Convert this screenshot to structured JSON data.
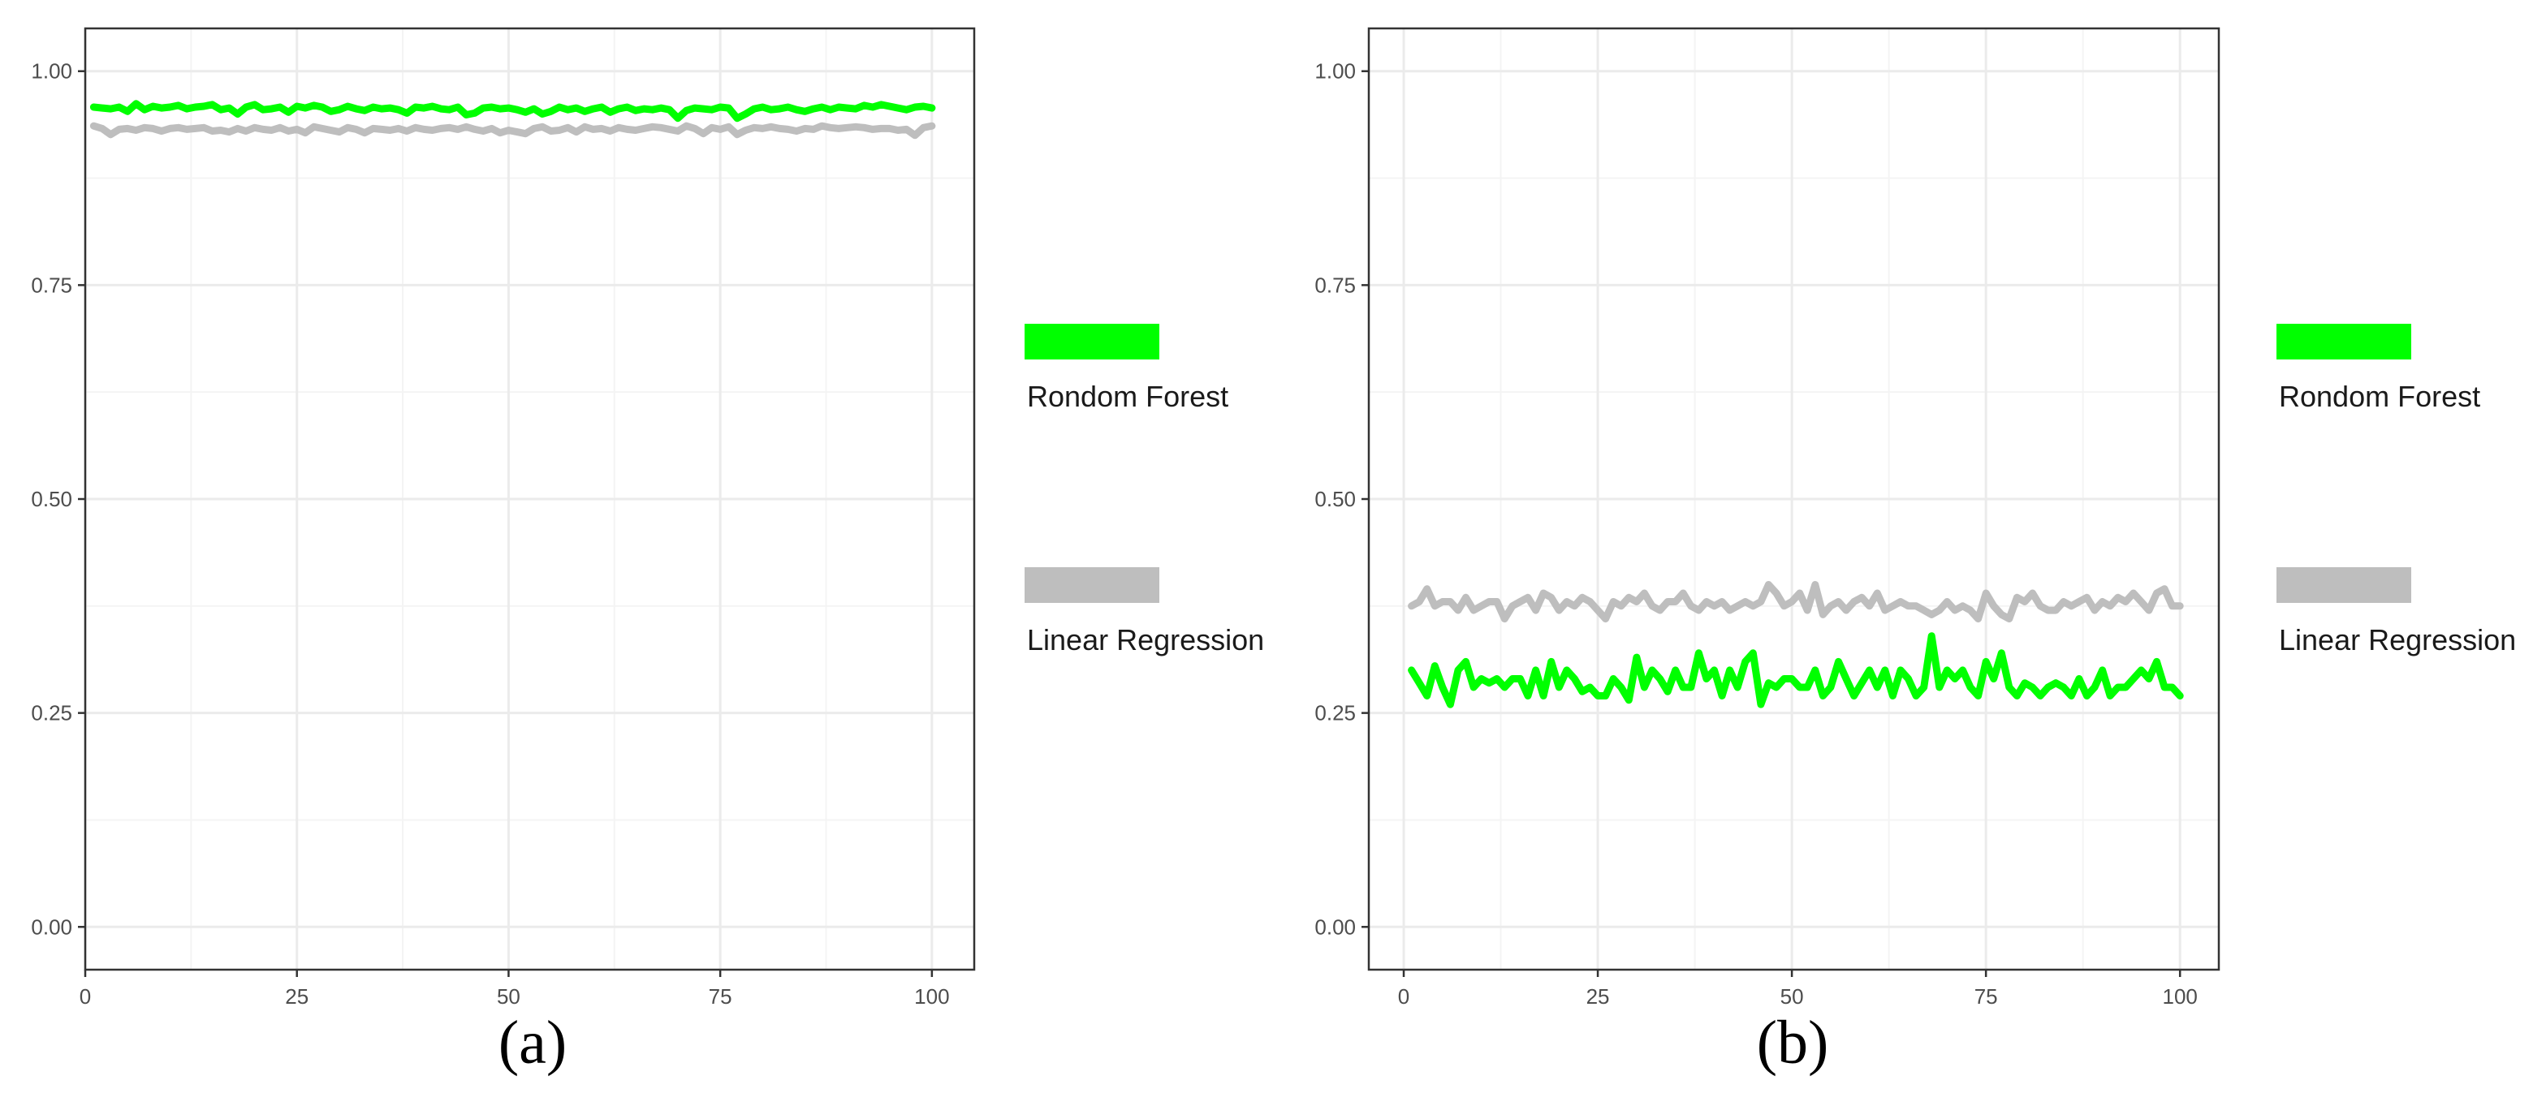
{
  "colors": {
    "random_forest": "#00ff00",
    "linear_regression": "#bebebe",
    "grid_major": "#ebebeb",
    "grid_minor": "#f4f4f4",
    "panel_border": "#333333",
    "background": "#ffffff"
  },
  "chart_data": [
    {
      "type": "line",
      "caption": "(a)",
      "title": "",
      "xlabel": "",
      "ylabel": "",
      "xlim": [
        0,
        105
      ],
      "ylim": [
        -0.05,
        1.05
      ],
      "x_ticks": [
        0,
        25,
        50,
        75,
        100
      ],
      "x_tick_labels": [
        "0",
        "25",
        "50",
        "75",
        "100"
      ],
      "y_ticks": [
        0,
        0.25,
        0.5,
        0.75,
        1
      ],
      "y_tick_labels": [
        "0.00",
        "0.25",
        "0.50",
        "0.75",
        "1.00"
      ],
      "grid": true,
      "legend_placement": "right",
      "legend": [
        "Rondom Forest",
        "Linear Regression"
      ],
      "x": [
        1,
        2,
        3,
        4,
        5,
        6,
        7,
        8,
        9,
        10,
        11,
        12,
        13,
        14,
        15,
        16,
        17,
        18,
        19,
        20,
        21,
        22,
        23,
        24,
        25,
        26,
        27,
        28,
        29,
        30,
        31,
        32,
        33,
        34,
        35,
        36,
        37,
        38,
        39,
        40,
        41,
        42,
        43,
        44,
        45,
        46,
        47,
        48,
        49,
        50,
        51,
        52,
        53,
        54,
        55,
        56,
        57,
        58,
        59,
        60,
        61,
        62,
        63,
        64,
        65,
        66,
        67,
        68,
        69,
        70,
        71,
        72,
        73,
        74,
        75,
        76,
        77,
        78,
        79,
        80,
        81,
        82,
        83,
        84,
        85,
        86,
        87,
        88,
        89,
        90,
        91,
        92,
        93,
        94,
        95,
        96,
        97,
        98,
        99,
        100
      ],
      "series": [
        {
          "name": "Rondom Forest",
          "values": [
            0.958,
            0.957,
            0.956,
            0.958,
            0.953,
            0.962,
            0.955,
            0.959,
            0.957,
            0.958,
            0.96,
            0.956,
            0.958,
            0.959,
            0.961,
            0.955,
            0.957,
            0.95,
            0.958,
            0.961,
            0.955,
            0.956,
            0.958,
            0.952,
            0.959,
            0.957,
            0.96,
            0.958,
            0.953,
            0.955,
            0.959,
            0.956,
            0.954,
            0.958,
            0.956,
            0.957,
            0.955,
            0.951,
            0.958,
            0.957,
            0.959,
            0.956,
            0.955,
            0.958,
            0.949,
            0.951,
            0.957,
            0.958,
            0.956,
            0.957,
            0.955,
            0.952,
            0.956,
            0.95,
            0.953,
            0.958,
            0.955,
            0.957,
            0.953,
            0.956,
            0.958,
            0.952,
            0.956,
            0.958,
            0.954,
            0.956,
            0.955,
            0.957,
            0.955,
            0.945,
            0.954,
            0.957,
            0.956,
            0.955,
            0.958,
            0.957,
            0.945,
            0.95,
            0.956,
            0.958,
            0.955,
            0.956,
            0.958,
            0.955,
            0.953,
            0.956,
            0.958,
            0.955,
            0.958,
            0.957,
            0.956,
            0.96,
            0.958,
            0.961,
            0.959,
            0.957,
            0.955,
            0.958,
            0.959,
            0.957
          ]
        },
        {
          "name": "Linear Regression",
          "values": [
            0.936,
            0.933,
            0.926,
            0.932,
            0.933,
            0.931,
            0.934,
            0.933,
            0.93,
            0.933,
            0.934,
            0.932,
            0.933,
            0.934,
            0.93,
            0.931,
            0.929,
            0.933,
            0.93,
            0.934,
            0.932,
            0.931,
            0.934,
            0.93,
            0.932,
            0.928,
            0.935,
            0.933,
            0.931,
            0.929,
            0.934,
            0.932,
            0.928,
            0.933,
            0.932,
            0.931,
            0.933,
            0.93,
            0.934,
            0.932,
            0.931,
            0.933,
            0.934,
            0.932,
            0.935,
            0.932,
            0.93,
            0.933,
            0.928,
            0.931,
            0.929,
            0.927,
            0.933,
            0.935,
            0.93,
            0.931,
            0.934,
            0.929,
            0.935,
            0.932,
            0.933,
            0.93,
            0.934,
            0.932,
            0.931,
            0.933,
            0.935,
            0.934,
            0.932,
            0.93,
            0.936,
            0.933,
            0.927,
            0.934,
            0.932,
            0.935,
            0.926,
            0.931,
            0.934,
            0.933,
            0.935,
            0.933,
            0.932,
            0.93,
            0.933,
            0.932,
            0.936,
            0.934,
            0.933,
            0.934,
            0.935,
            0.934,
            0.932,
            0.933,
            0.933,
            0.931,
            0.932,
            0.925,
            0.934,
            0.936
          ]
        }
      ]
    },
    {
      "type": "line",
      "caption": "(b)",
      "title": "",
      "xlabel": "",
      "ylabel": "",
      "xlim": [
        -4.5,
        105
      ],
      "ylim": [
        -0.05,
        1.05
      ],
      "x_ticks": [
        0,
        25,
        50,
        75,
        100
      ],
      "x_tick_labels": [
        "0",
        "25",
        "50",
        "75",
        "100"
      ],
      "y_ticks": [
        0,
        0.25,
        0.5,
        0.75,
        1
      ],
      "y_tick_labels": [
        "0.00",
        "0.25",
        "0.50",
        "0.75",
        "1.00"
      ],
      "grid": true,
      "legend_placement": "right",
      "legend": [
        "Rondom Forest",
        "Linear Regression"
      ],
      "x": [
        1,
        2,
        3,
        4,
        5,
        6,
        7,
        8,
        9,
        10,
        11,
        12,
        13,
        14,
        15,
        16,
        17,
        18,
        19,
        20,
        21,
        22,
        23,
        24,
        25,
        26,
        27,
        28,
        29,
        30,
        31,
        32,
        33,
        34,
        35,
        36,
        37,
        38,
        39,
        40,
        41,
        42,
        43,
        44,
        45,
        46,
        47,
        48,
        49,
        50,
        51,
        52,
        53,
        54,
        55,
        56,
        57,
        58,
        59,
        60,
        61,
        62,
        63,
        64,
        65,
        66,
        67,
        68,
        69,
        70,
        71,
        72,
        73,
        74,
        75,
        76,
        77,
        78,
        79,
        80,
        81,
        82,
        83,
        84,
        85,
        86,
        87,
        88,
        89,
        90,
        91,
        92,
        93,
        94,
        95,
        96,
        97,
        98,
        99,
        100
      ],
      "series": [
        {
          "name": "Rondom Forest",
          "values": [
            0.3,
            0.285,
            0.27,
            0.305,
            0.28,
            0.26,
            0.3,
            0.31,
            0.28,
            0.29,
            0.285,
            0.29,
            0.28,
            0.29,
            0.29,
            0.27,
            0.3,
            0.27,
            0.31,
            0.28,
            0.3,
            0.29,
            0.275,
            0.28,
            0.27,
            0.27,
            0.29,
            0.28,
            0.265,
            0.315,
            0.28,
            0.3,
            0.29,
            0.275,
            0.3,
            0.28,
            0.28,
            0.32,
            0.29,
            0.3,
            0.27,
            0.3,
            0.28,
            0.31,
            0.32,
            0.26,
            0.285,
            0.28,
            0.29,
            0.29,
            0.28,
            0.28,
            0.3,
            0.27,
            0.28,
            0.31,
            0.29,
            0.27,
            0.285,
            0.3,
            0.28,
            0.3,
            0.27,
            0.3,
            0.29,
            0.27,
            0.28,
            0.34,
            0.28,
            0.3,
            0.29,
            0.3,
            0.28,
            0.27,
            0.31,
            0.29,
            0.32,
            0.28,
            0.27,
            0.285,
            0.28,
            0.27,
            0.28,
            0.285,
            0.28,
            0.27,
            0.29,
            0.27,
            0.28,
            0.3,
            0.27,
            0.28,
            0.28,
            0.29,
            0.3,
            0.29,
            0.31,
            0.28,
            0.28,
            0.27
          ]
        },
        {
          "name": "Linear Regression",
          "values": [
            0.375,
            0.38,
            0.395,
            0.375,
            0.38,
            0.38,
            0.37,
            0.385,
            0.37,
            0.375,
            0.38,
            0.38,
            0.36,
            0.375,
            0.38,
            0.385,
            0.37,
            0.39,
            0.385,
            0.37,
            0.38,
            0.375,
            0.385,
            0.38,
            0.37,
            0.36,
            0.38,
            0.375,
            0.385,
            0.38,
            0.39,
            0.375,
            0.37,
            0.38,
            0.38,
            0.39,
            0.375,
            0.37,
            0.38,
            0.375,
            0.38,
            0.37,
            0.375,
            0.38,
            0.375,
            0.38,
            0.4,
            0.39,
            0.375,
            0.38,
            0.39,
            0.37,
            0.4,
            0.365,
            0.375,
            0.38,
            0.37,
            0.38,
            0.385,
            0.375,
            0.39,
            0.37,
            0.375,
            0.38,
            0.375,
            0.375,
            0.37,
            0.365,
            0.37,
            0.38,
            0.37,
            0.375,
            0.37,
            0.36,
            0.39,
            0.375,
            0.365,
            0.36,
            0.385,
            0.38,
            0.39,
            0.375,
            0.37,
            0.37,
            0.38,
            0.375,
            0.38,
            0.385,
            0.37,
            0.38,
            0.375,
            0.385,
            0.38,
            0.39,
            0.38,
            0.37,
            0.39,
            0.395,
            0.375,
            0.375
          ]
        }
      ]
    }
  ]
}
